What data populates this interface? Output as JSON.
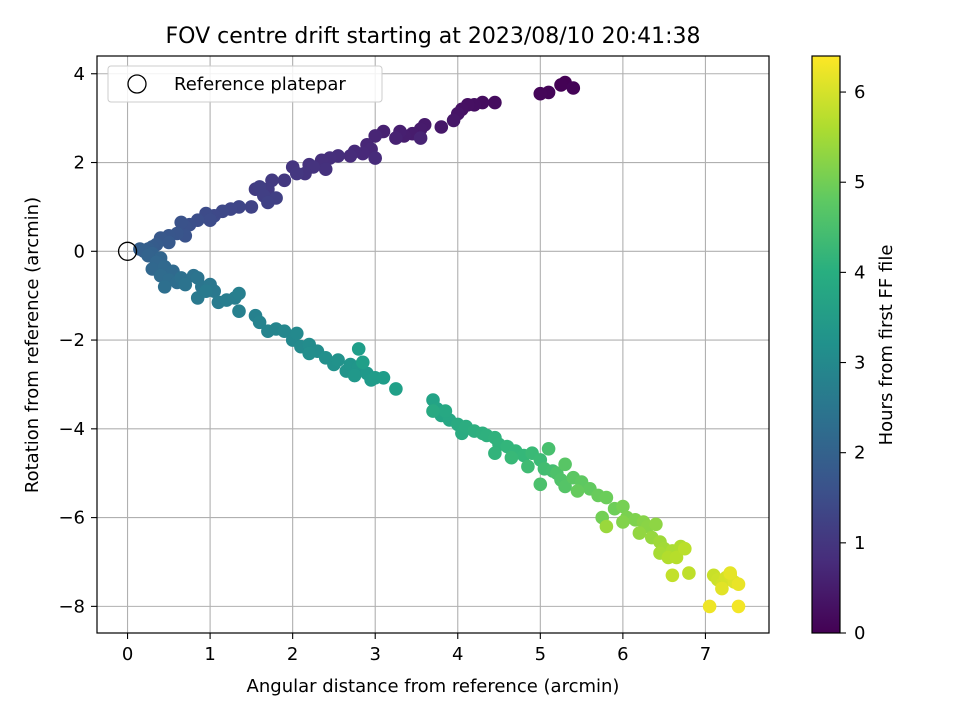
{
  "chart_data": {
    "type": "scatter",
    "title": "FOV centre drift starting at 2023/08/10 20:41:38",
    "xlabel": "Angular distance from reference (arcmin)",
    "ylabel": "Rotation from reference (arcmin)",
    "xlim": [
      -0.37,
      7.77
    ],
    "ylim": [
      -8.6,
      4.4
    ],
    "xticks": [
      0,
      1,
      2,
      3,
      4,
      5,
      6,
      7
    ],
    "yticks": [
      -8,
      -6,
      -4,
      -2,
      0,
      2,
      4
    ],
    "grid": true,
    "legend": {
      "placement": "top-left",
      "entries": [
        "Reference platepar"
      ]
    },
    "reference_point": {
      "x": 0,
      "y": 0,
      "label": "Reference platepar",
      "marker": "open-circle"
    },
    "colorbar": {
      "label": "Hours from first FF file",
      "range": [
        0,
        6.4
      ],
      "ticks": [
        0,
        1,
        2,
        3,
        4,
        5,
        6
      ],
      "colormap": "viridis"
    },
    "points": [
      [
        5.3,
        3.8,
        0.0
      ],
      [
        5.25,
        3.75,
        0.02
      ],
      [
        5.4,
        3.68,
        0.05
      ],
      [
        5.1,
        3.58,
        0.08
      ],
      [
        5.0,
        3.55,
        0.1
      ],
      [
        4.45,
        3.35,
        0.2
      ],
      [
        4.3,
        3.35,
        0.22
      ],
      [
        4.2,
        3.3,
        0.25
      ],
      [
        4.12,
        3.3,
        0.28
      ],
      [
        4.05,
        3.2,
        0.3
      ],
      [
        4.0,
        3.1,
        0.35
      ],
      [
        3.95,
        2.95,
        0.4
      ],
      [
        3.8,
        2.8,
        0.42
      ],
      [
        3.6,
        2.85,
        0.45
      ],
      [
        3.55,
        2.75,
        0.48
      ],
      [
        3.45,
        2.65,
        0.5
      ],
      [
        3.35,
        2.6,
        0.52
      ],
      [
        3.3,
        2.7,
        0.55
      ],
      [
        3.1,
        2.7,
        0.58
      ],
      [
        3.25,
        2.55,
        0.6
      ],
      [
        3.55,
        2.55,
        0.63
      ],
      [
        3.0,
        2.6,
        0.66
      ],
      [
        2.9,
        2.4,
        0.7
      ],
      [
        2.95,
        2.3,
        0.72
      ],
      [
        2.85,
        2.2,
        0.74
      ],
      [
        2.75,
        2.25,
        0.76
      ],
      [
        3.0,
        2.1,
        0.78
      ],
      [
        2.7,
        2.15,
        0.8
      ],
      [
        2.55,
        2.15,
        0.83
      ],
      [
        2.45,
        2.1,
        0.86
      ],
      [
        2.35,
        2.05,
        0.88
      ],
      [
        2.4,
        1.85,
        0.9
      ],
      [
        2.2,
        1.95,
        0.92
      ],
      [
        2.25,
        1.9,
        0.95
      ],
      [
        2.15,
        1.75,
        0.98
      ],
      [
        2.0,
        1.9,
        1.0
      ],
      [
        2.05,
        1.75,
        1.03
      ],
      [
        1.9,
        1.6,
        1.06
      ],
      [
        1.75,
        1.6,
        1.1
      ],
      [
        1.7,
        1.4,
        1.13
      ],
      [
        1.55,
        1.4,
        1.15
      ],
      [
        1.6,
        1.45,
        1.18
      ],
      [
        1.65,
        1.25,
        1.2
      ],
      [
        1.8,
        1.2,
        1.23
      ],
      [
        1.7,
        1.1,
        1.26
      ],
      [
        1.5,
        1.0,
        1.3
      ],
      [
        1.35,
        1.0,
        1.33
      ],
      [
        1.25,
        0.95,
        1.36
      ],
      [
        1.15,
        0.9,
        1.4
      ],
      [
        1.05,
        0.8,
        1.43
      ],
      [
        0.95,
        0.85,
        1.46
      ],
      [
        1.0,
        0.7,
        1.5
      ],
      [
        0.85,
        0.7,
        1.53
      ],
      [
        0.75,
        0.6,
        1.56
      ],
      [
        0.7,
        0.55,
        1.6
      ],
      [
        0.65,
        0.65,
        1.63
      ],
      [
        0.7,
        0.35,
        1.66
      ],
      [
        0.6,
        0.4,
        1.7
      ],
      [
        0.5,
        0.35,
        1.73
      ],
      [
        0.4,
        0.3,
        1.76
      ],
      [
        0.5,
        0.2,
        1.8
      ],
      [
        0.35,
        0.15,
        1.83
      ],
      [
        0.3,
        0.1,
        1.86
      ],
      [
        0.25,
        0.05,
        1.9
      ],
      [
        0.15,
        0.05,
        1.93
      ],
      [
        0.2,
        0.0,
        1.96
      ],
      [
        0.3,
        -0.05,
        2.0
      ],
      [
        0.25,
        -0.1,
        2.03
      ],
      [
        0.4,
        -0.15,
        2.06
      ],
      [
        0.35,
        -0.25,
        2.1
      ],
      [
        0.3,
        -0.4,
        2.13
      ],
      [
        0.45,
        -0.35,
        2.16
      ],
      [
        0.55,
        -0.45,
        2.2
      ],
      [
        0.4,
        -0.55,
        2.23
      ],
      [
        0.5,
        -0.65,
        2.26
      ],
      [
        0.6,
        -0.7,
        2.3
      ],
      [
        0.45,
        -0.8,
        2.33
      ],
      [
        0.65,
        -0.6,
        2.36
      ],
      [
        0.8,
        -0.55,
        2.4
      ],
      [
        0.7,
        -0.75,
        2.43
      ],
      [
        0.85,
        -0.6,
        2.46
      ],
      [
        0.9,
        -0.8,
        2.5
      ],
      [
        1.0,
        -0.75,
        2.53
      ],
      [
        1.05,
        -0.9,
        2.56
      ],
      [
        0.85,
        -1.05,
        2.6
      ],
      [
        0.95,
        -0.9,
        2.63
      ],
      [
        1.1,
        -1.15,
        2.66
      ],
      [
        1.2,
        -1.1,
        2.7
      ],
      [
        1.3,
        -1.05,
        2.73
      ],
      [
        1.35,
        -0.95,
        2.76
      ],
      [
        1.35,
        -1.35,
        2.8
      ],
      [
        1.55,
        -1.45,
        2.83
      ],
      [
        1.6,
        -1.6,
        2.86
      ],
      [
        1.7,
        -1.8,
        2.9
      ],
      [
        1.8,
        -1.75,
        2.93
      ],
      [
        1.9,
        -1.8,
        2.96
      ],
      [
        2.0,
        -2.0,
        3.0
      ],
      [
        2.05,
        -1.85,
        3.03
      ],
      [
        2.1,
        -2.15,
        3.06
      ],
      [
        2.2,
        -2.1,
        3.1
      ],
      [
        2.3,
        -2.25,
        3.13
      ],
      [
        2.2,
        -2.3,
        3.16
      ],
      [
        2.4,
        -2.4,
        3.2
      ],
      [
        2.5,
        -2.55,
        3.23
      ],
      [
        2.55,
        -2.45,
        3.26
      ],
      [
        2.65,
        -2.7,
        3.3
      ],
      [
        2.7,
        -2.55,
        3.33
      ],
      [
        2.8,
        -2.6,
        3.36
      ],
      [
        2.75,
        -2.8,
        3.4
      ],
      [
        2.9,
        -2.75,
        3.43
      ],
      [
        2.95,
        -2.9,
        3.46
      ],
      [
        3.0,
        -2.85,
        3.5
      ],
      [
        3.1,
        -2.85,
        3.53
      ],
      [
        2.8,
        -2.2,
        3.56
      ],
      [
        2.85,
        -2.5,
        3.58
      ],
      [
        3.25,
        -3.1,
        3.62
      ],
      [
        3.7,
        -3.35,
        3.7
      ],
      [
        3.75,
        -3.55,
        3.73
      ],
      [
        3.8,
        -3.7,
        3.76
      ],
      [
        3.9,
        -3.8,
        3.8
      ],
      [
        3.85,
        -3.6,
        3.83
      ],
      [
        3.7,
        -3.6,
        3.86
      ],
      [
        4.0,
        -3.9,
        3.9
      ],
      [
        4.05,
        -4.1,
        3.93
      ],
      [
        4.1,
        -3.95,
        3.96
      ],
      [
        4.2,
        -4.05,
        4.0
      ],
      [
        4.3,
        -4.1,
        4.03
      ],
      [
        4.35,
        -4.15,
        4.06
      ],
      [
        4.45,
        -4.2,
        4.1
      ],
      [
        4.5,
        -4.35,
        4.13
      ],
      [
        4.45,
        -4.55,
        4.16
      ],
      [
        4.6,
        -4.4,
        4.2
      ],
      [
        4.7,
        -4.5,
        4.23
      ],
      [
        4.8,
        -4.6,
        4.26
      ],
      [
        4.65,
        -4.65,
        4.3
      ],
      [
        4.9,
        -4.55,
        4.33
      ],
      [
        5.0,
        -4.7,
        4.36
      ],
      [
        4.85,
        -4.85,
        4.4
      ],
      [
        5.05,
        -4.9,
        4.43
      ],
      [
        5.15,
        -4.95,
        4.46
      ],
      [
        5.1,
        -4.45,
        4.5
      ],
      [
        5.0,
        -5.25,
        4.55
      ],
      [
        5.2,
        -5.0,
        4.58
      ],
      [
        5.25,
        -5.15,
        4.62
      ],
      [
        5.3,
        -5.3,
        4.66
      ],
      [
        5.3,
        -4.8,
        4.7
      ],
      [
        5.4,
        -5.1,
        4.74
      ],
      [
        5.5,
        -5.2,
        4.78
      ],
      [
        5.6,
        -5.35,
        4.82
      ],
      [
        5.45,
        -5.4,
        4.86
      ],
      [
        5.7,
        -5.5,
        4.9
      ],
      [
        5.8,
        -5.55,
        4.94
      ],
      [
        5.9,
        -5.8,
        4.98
      ],
      [
        5.75,
        -6.0,
        5.02
      ],
      [
        6.0,
        -5.75,
        5.06
      ],
      [
        6.05,
        -6.0,
        5.1
      ],
      [
        6.15,
        -6.05,
        5.14
      ],
      [
        6.0,
        -6.1,
        5.18
      ],
      [
        6.25,
        -6.1,
        5.22
      ],
      [
        6.3,
        -6.2,
        5.26
      ],
      [
        6.4,
        -6.15,
        5.3
      ],
      [
        6.2,
        -6.35,
        5.34
      ],
      [
        6.35,
        -6.45,
        5.38
      ],
      [
        5.8,
        -6.2,
        5.42
      ],
      [
        6.45,
        -6.55,
        5.46
      ],
      [
        6.5,
        -6.7,
        5.5
      ],
      [
        6.45,
        -6.8,
        5.54
      ],
      [
        6.6,
        -6.75,
        5.58
      ],
      [
        6.7,
        -6.65,
        5.62
      ],
      [
        6.55,
        -6.9,
        5.66
      ],
      [
        6.65,
        -6.9,
        5.7
      ],
      [
        6.75,
        -6.7,
        5.74
      ],
      [
        6.8,
        -7.25,
        5.78
      ],
      [
        6.6,
        -7.3,
        5.82
      ],
      [
        7.1,
        -7.3,
        5.88
      ],
      [
        7.15,
        -7.4,
        5.92
      ],
      [
        7.2,
        -7.5,
        5.96
      ],
      [
        7.25,
        -7.35,
        6.0
      ],
      [
        7.3,
        -7.3,
        6.04
      ],
      [
        7.35,
        -7.45,
        6.08
      ],
      [
        7.2,
        -7.6,
        6.12
      ],
      [
        7.3,
        -7.25,
        6.16
      ],
      [
        7.4,
        -7.5,
        6.2
      ],
      [
        7.05,
        -8.0,
        6.25
      ],
      [
        7.4,
        -8.0,
        6.3
      ]
    ]
  }
}
